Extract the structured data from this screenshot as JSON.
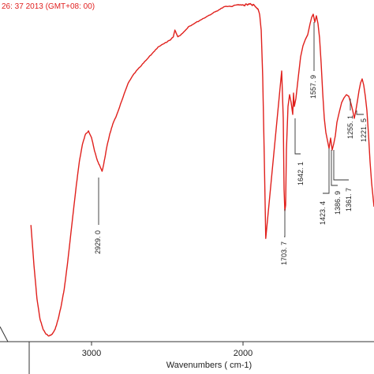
{
  "header_text": "26: 37  2013  (GMT+08: 00)",
  "chart_data": {
    "type": "line",
    "xlabel": "Wavenumbers ( cm-1)",
    "x_reversed": true,
    "xlim": [
      3410,
      1850
    ],
    "ylim": [
      0,
      100
    ],
    "grid": false,
    "x_ticks": [
      3000,
      2000
    ],
    "series_color": "#e0201c",
    "series": [
      {
        "x": [
          3400,
          3380,
          3360,
          3340,
          3320,
          3300,
          3280,
          3260,
          3240,
          3220,
          3200,
          3180,
          3160,
          3140,
          3120,
          3100,
          3080,
          3060,
          3040,
          3020,
          3000,
          2980,
          2960,
          2940,
          2930,
          2920,
          2900,
          2880,
          2860,
          2840,
          2800,
          2760,
          2720,
          2680,
          2640,
          2600,
          2560,
          2520,
          2480,
          2460,
          2450,
          2440,
          2430,
          2400,
          2360,
          2320,
          2280,
          2240,
          2200,
          2160,
          2120,
          2080,
          2040,
          2020,
          2000,
          1990,
          1980,
          1970,
          1960,
          1950,
          1940,
          1930,
          1920,
          1910,
          1900,
          1890,
          1880,
          1870,
          1860,
          1850
        ],
        "y": [
          34,
          22,
          12,
          6,
          3,
          1.5,
          1,
          1.5,
          3,
          6,
          10,
          15,
          22,
          30,
          38,
          46,
          53,
          58,
          61,
          62,
          60,
          56,
          53,
          51,
          50,
          52,
          57,
          61,
          64,
          66,
          71,
          76,
          79,
          81,
          83,
          85,
          87,
          88,
          89,
          90,
          92,
          91,
          90,
          91,
          93,
          94,
          95,
          96,
          97,
          98,
          99,
          99,
          99.5,
          99.5,
          99.5,
          99.2,
          99.8,
          99.4,
          99.8,
          99.8,
          99.3,
          99.6,
          99.0,
          98.6,
          98.2,
          96.5,
          92,
          78,
          55,
          30
        ],
        "interpolated_between_points": true
      }
    ],
    "peak_labels": [
      "2929. 0",
      "1703. 7",
      "1642. 1",
      "1557. 9",
      "1423. 4",
      "1386. 9",
      "1361. 7",
      "1255. 1",
      "1221. 5"
    ]
  }
}
